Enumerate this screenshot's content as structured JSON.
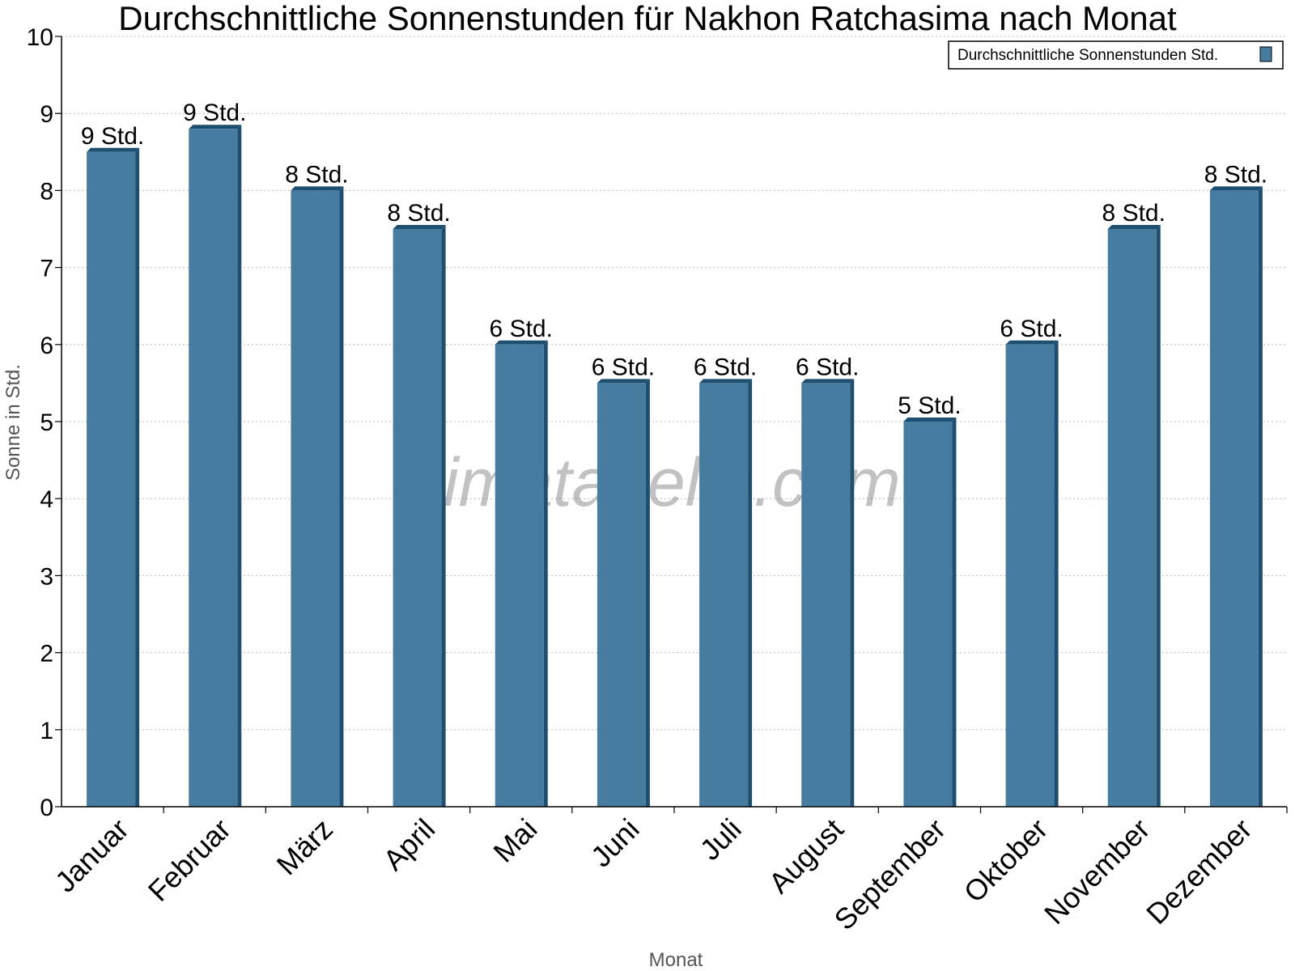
{
  "chart_data": {
    "type": "bar",
    "title": "Durchschnittliche Sonnenstunden für Nakhon Ratchasima nach Monat",
    "xlabel": "Monat",
    "ylabel": "Sonne in Std.",
    "categories": [
      "Januar",
      "Februar",
      "März",
      "April",
      "Mai",
      "Juni",
      "Juli",
      "August",
      "September",
      "Oktober",
      "November",
      "Dezember"
    ],
    "series": [
      {
        "name": "Durchschnittliche Sonnenstunden Std.",
        "values": [
          8.5,
          8.8,
          8.0,
          7.5,
          6.0,
          5.5,
          5.5,
          5.5,
          5.0,
          6.0,
          7.5,
          8.0
        ],
        "labels": [
          "9 Std.",
          "9 Std.",
          "8 Std.",
          "8 Std.",
          "6 Std.",
          "6 Std.",
          "6 Std.",
          "6 Std.",
          "5 Std.",
          "6 Std.",
          "8 Std.",
          "8 Std."
        ],
        "color": "#467ca0",
        "side_color": "#1e4f70"
      }
    ],
    "ylim": [
      0,
      10
    ],
    "yticks": [
      "0",
      "1",
      "2",
      "3",
      "4",
      "5",
      "6",
      "7",
      "8",
      "9",
      "10"
    ],
    "grid": true,
    "legend": "top-right"
  },
  "watermark": "klimatabelle.com"
}
